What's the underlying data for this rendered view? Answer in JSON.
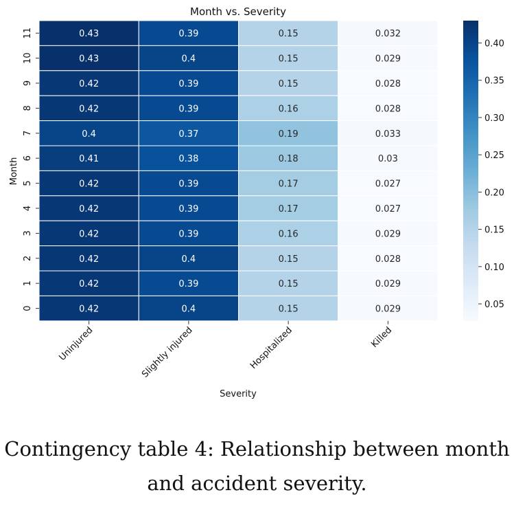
{
  "chart_data": {
    "type": "heatmap",
    "title": "Month vs. Severity",
    "xlabel": "Severity",
    "ylabel": "Month",
    "x_categories": [
      "Uninjured",
      "Slightly injured",
      "Hospitalized",
      "Killed"
    ],
    "y_categories": [
      "11",
      "10",
      "9",
      "8",
      "7",
      "6",
      "5",
      "4",
      "3",
      "2",
      "1",
      "0"
    ],
    "values": [
      [
        0.43,
        0.39,
        0.15,
        0.032
      ],
      [
        0.43,
        0.4,
        0.15,
        0.029
      ],
      [
        0.42,
        0.39,
        0.15,
        0.028
      ],
      [
        0.42,
        0.39,
        0.16,
        0.028
      ],
      [
        0.4,
        0.37,
        0.19,
        0.033
      ],
      [
        0.41,
        0.38,
        0.18,
        0.03
      ],
      [
        0.42,
        0.39,
        0.17,
        0.027
      ],
      [
        0.42,
        0.39,
        0.17,
        0.027
      ],
      [
        0.42,
        0.39,
        0.16,
        0.029
      ],
      [
        0.42,
        0.4,
        0.15,
        0.028
      ],
      [
        0.42,
        0.39,
        0.15,
        0.029
      ],
      [
        0.42,
        0.4,
        0.15,
        0.029
      ]
    ],
    "colormap": "Blues",
    "colorbar": {
      "range": [
        0.027,
        0.43
      ],
      "ticks": [
        "0.05",
        "0.10",
        "0.15",
        "0.20",
        "0.25",
        "0.30",
        "0.35",
        "0.40"
      ]
    }
  },
  "caption": {
    "line1": "Contingency table 4: Relationship between month",
    "line2": "and accident severity."
  }
}
